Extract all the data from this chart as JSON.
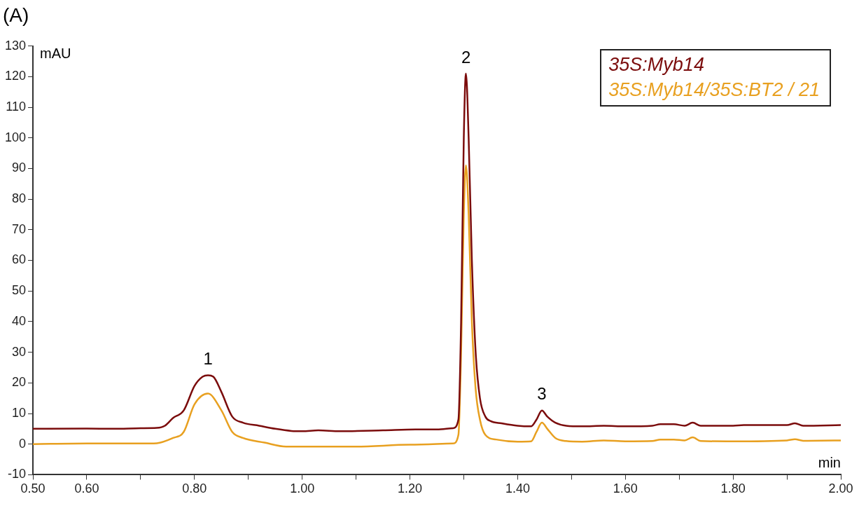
{
  "chart_data": {
    "type": "line",
    "title": "(A)",
    "xlabel": "min",
    "ylabel": "mAU",
    "xlim": [
      0.5,
      2.0
    ],
    "xticks": [
      {
        "value": 0.5,
        "label": "0.50"
      },
      {
        "value": 0.6,
        "label": "0.60"
      },
      {
        "value": 0.7,
        "label": null
      },
      {
        "value": 0.8,
        "label": "0.80"
      },
      {
        "value": 0.9,
        "label": null
      },
      {
        "value": 1.0,
        "label": "1.00"
      },
      {
        "value": 1.1,
        "label": null
      },
      {
        "value": 1.2,
        "label": "1.20"
      },
      {
        "value": 1.3,
        "label": null
      },
      {
        "value": 1.4,
        "label": "1.40"
      },
      {
        "value": 1.5,
        "label": null
      },
      {
        "value": 1.6,
        "label": "1.60"
      },
      {
        "value": 1.7,
        "label": null
      },
      {
        "value": 1.8,
        "label": "1.80"
      },
      {
        "value": 1.9,
        "label": null
      },
      {
        "value": 2.0,
        "label": "2.00"
      }
    ],
    "ylim": [
      -10,
      130
    ],
    "yticks": [
      -10,
      0,
      10,
      20,
      30,
      40,
      50,
      60,
      70,
      80,
      90,
      100,
      110,
      120,
      130
    ],
    "grid": false,
    "legend": "top right",
    "marker": "none",
    "line_style": "solid",
    "annotations": [
      {
        "text": "1",
        "x": 0.825,
        "y": 22.5
      },
      {
        "text": "2",
        "x": 1.304,
        "y": 121
      },
      {
        "text": "3",
        "x": 1.445,
        "y": 11
      }
    ],
    "series": [
      {
        "name": "35S:Myb14",
        "color": "#7b0c0c",
        "x": [
          0.5,
          0.6,
          0.65,
          0.7,
          0.73,
          0.745,
          0.76,
          0.78,
          0.8,
          0.815,
          0.825,
          0.835,
          0.85,
          0.87,
          0.89,
          0.92,
          0.95,
          0.98,
          1.0,
          1.03,
          1.07,
          1.15,
          1.21,
          1.25,
          1.28,
          1.29,
          1.295,
          1.3,
          1.304,
          1.309,
          1.315,
          1.322,
          1.33,
          1.34,
          1.35,
          1.37,
          1.4,
          1.425,
          1.435,
          1.445,
          1.455,
          1.47,
          1.49,
          1.52,
          1.56,
          1.6,
          1.65,
          1.665,
          1.69,
          1.71,
          1.725,
          1.74,
          1.8,
          1.82,
          1.9,
          1.915,
          1.93,
          2.0
        ],
        "values": [
          5.0,
          5.1,
          5.0,
          5.2,
          5.3,
          6.0,
          8.5,
          11,
          19,
          22,
          22.5,
          22,
          17,
          9,
          7,
          6,
          5,
          4.3,
          4.2,
          4.5,
          4.2,
          4.5,
          4.8,
          4.8,
          5.2,
          8,
          40,
          100,
          121,
          100,
          60,
          30,
          15,
          9,
          7.5,
          6.8,
          6.0,
          5.8,
          8,
          11,
          9,
          7,
          6,
          5.8,
          6.0,
          5.8,
          6.0,
          6.5,
          6.5,
          6.0,
          7.0,
          6.0,
          6.0,
          6.2,
          6.2,
          6.8,
          6.0,
          6.2
        ]
      },
      {
        "name": "35S:Myb14/35S:BT2 / 21",
        "color": "#e8a020",
        "x": [
          0.5,
          0.6,
          0.7,
          0.73,
          0.76,
          0.78,
          0.8,
          0.825,
          0.85,
          0.87,
          0.89,
          0.93,
          0.97,
          1.0,
          1.1,
          1.2,
          1.28,
          1.29,
          1.295,
          1.3,
          1.304,
          1.309,
          1.315,
          1.322,
          1.33,
          1.34,
          1.36,
          1.4,
          1.425,
          1.435,
          1.445,
          1.455,
          1.47,
          1.49,
          1.52,
          1.56,
          1.6,
          1.65,
          1.665,
          1.69,
          1.71,
          1.725,
          1.74,
          1.8,
          1.9,
          1.915,
          1.93,
          2.0
        ],
        "values": [
          0,
          0.2,
          0.2,
          0.3,
          2,
          4,
          13,
          16.5,
          11,
          4,
          2,
          0.5,
          -0.8,
          -0.8,
          -0.8,
          -0.2,
          0.2,
          3,
          30,
          75,
          91,
          75,
          40,
          18,
          8,
          3,
          1.5,
          0.8,
          0.9,
          4,
          7,
          5,
          2,
          1,
          0.8,
          1.2,
          0.9,
          1,
          1.5,
          1.5,
          1.2,
          2.2,
          1.0,
          0.9,
          1.2,
          1.6,
          1.1,
          1.2
        ]
      }
    ]
  }
}
